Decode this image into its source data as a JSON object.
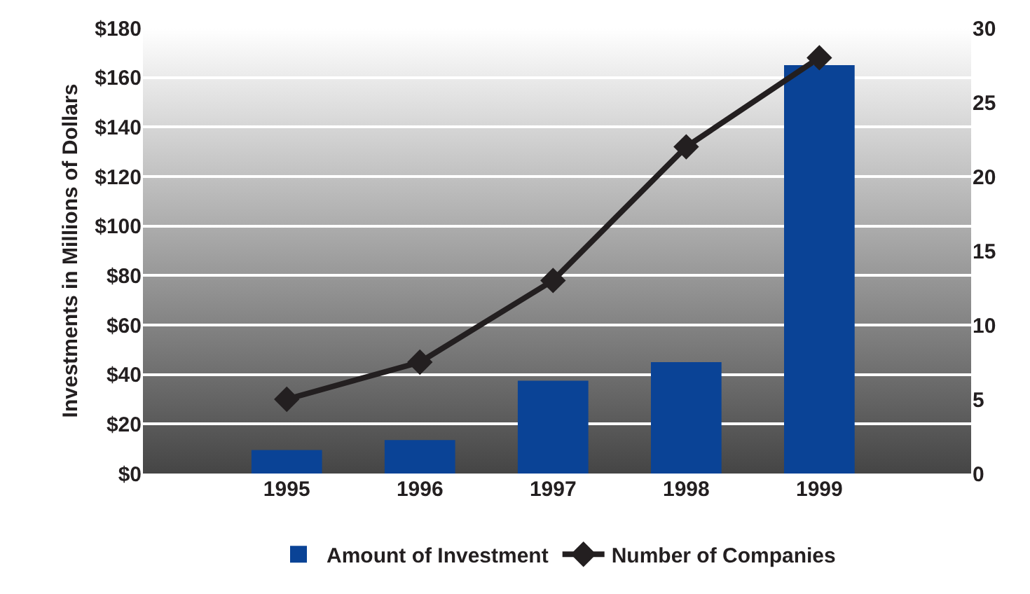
{
  "chart_data": {
    "type": "bar",
    "categories": [
      "1995",
      "1996",
      "1997",
      "1998",
      "1999"
    ],
    "ylabel": "Investments in Millions of Dollars",
    "series": [
      {
        "name": "Amount of Investment",
        "color": "#0a4396",
        "values": [
          9.5,
          13.5,
          37.5,
          45,
          165
        ]
      },
      {
        "name": "Number of Companies",
        "type": "line",
        "axis": "y2",
        "color": "#231f20",
        "marker": "diamond",
        "values": [
          5,
          7.5,
          13,
          22,
          28
        ]
      }
    ],
    "ylim": [
      0,
      180
    ],
    "yticks": [
      {
        "value": 0,
        "label": "$0"
      },
      {
        "value": 20,
        "label": "$20"
      },
      {
        "value": 40,
        "label": "$40"
      },
      {
        "value": 60,
        "label": "$60"
      },
      {
        "value": 80,
        "label": "$80"
      },
      {
        "value": 100,
        "label": "$100"
      },
      {
        "value": 120,
        "label": "$120"
      },
      {
        "value": 140,
        "label": "$140"
      },
      {
        "value": 160,
        "label": "$160"
      },
      {
        "value": 180,
        "label": "$180"
      }
    ],
    "y2lim": [
      0,
      30
    ],
    "y2ticks": [
      0,
      5,
      10,
      15,
      20,
      25,
      30
    ],
    "grid": "y",
    "legend": "bottom"
  }
}
